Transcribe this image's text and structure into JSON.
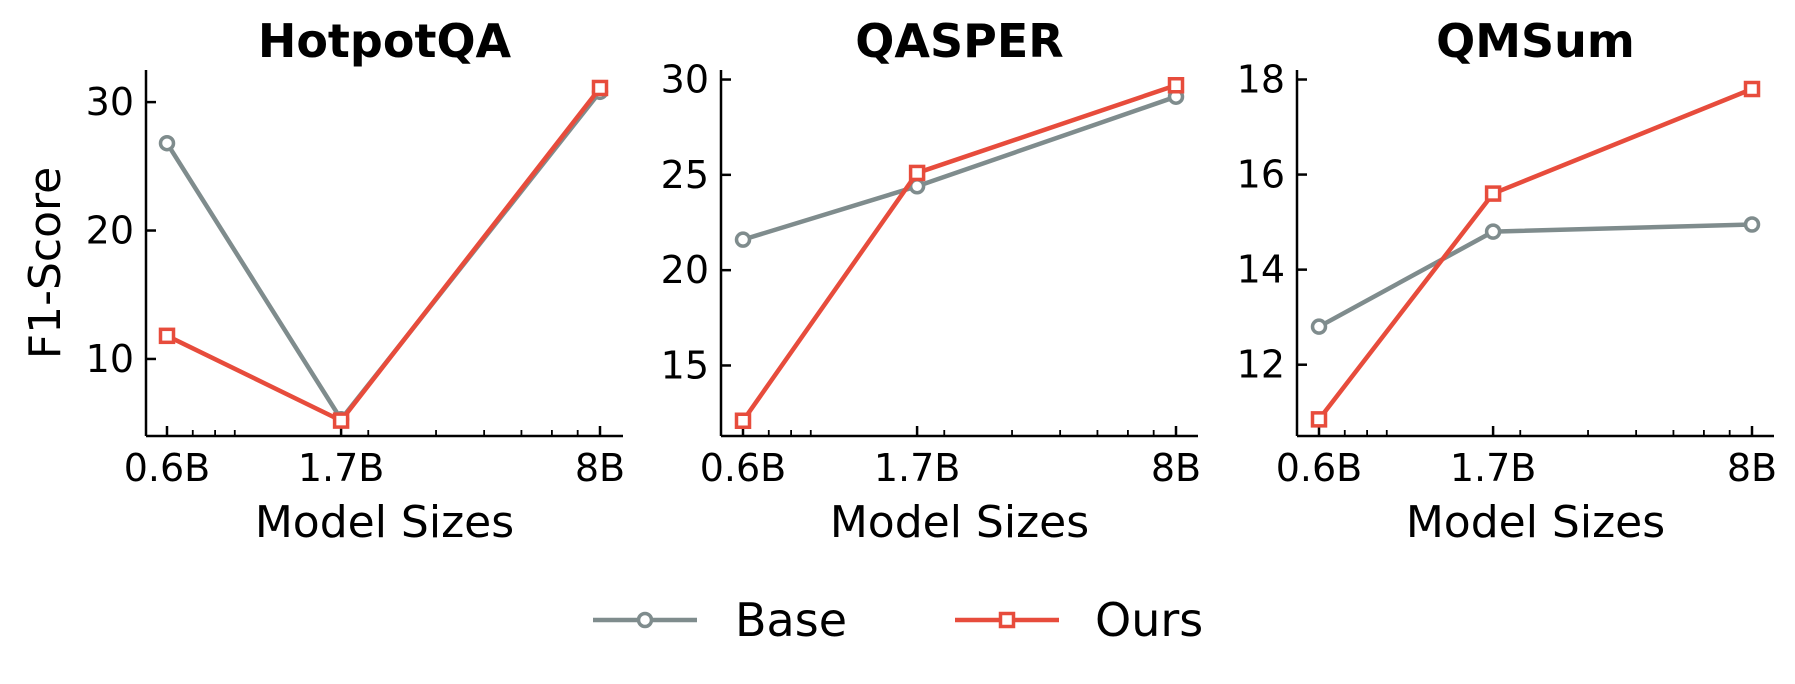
{
  "chart_data": [
    {
      "type": "line",
      "title": "HotpotQA",
      "xlabel": "Model Sizes",
      "ylabel": "F1-Score",
      "x_scale": "log",
      "x": [
        0.6,
        1.7,
        8
      ],
      "xticklabels": [
        "0.6B",
        "1.7B",
        "8B"
      ],
      "ylim": [
        4,
        32.5
      ],
      "yticks": [
        10,
        20,
        30
      ],
      "series": [
        {
          "name": "Base",
          "values": [
            26.8,
            5.3,
            30.8
          ]
        },
        {
          "name": "Ours",
          "values": [
            11.8,
            5.2,
            31.1
          ]
        }
      ]
    },
    {
      "type": "line",
      "title": "QASPER",
      "xlabel": "Model Sizes",
      "ylabel": "",
      "x_scale": "log",
      "x": [
        0.6,
        1.7,
        8
      ],
      "xticklabels": [
        "0.6B",
        "1.7B",
        "8B"
      ],
      "ylim": [
        11.3,
        30.5
      ],
      "yticks": [
        15,
        20,
        25,
        30
      ],
      "series": [
        {
          "name": "Base",
          "values": [
            21.6,
            24.4,
            29.1
          ]
        },
        {
          "name": "Ours",
          "values": [
            12.1,
            25.1,
            29.7
          ]
        }
      ]
    },
    {
      "type": "line",
      "title": "QMSum",
      "xlabel": "Model Sizes",
      "ylabel": "",
      "x_scale": "log",
      "x": [
        0.6,
        1.7,
        8
      ],
      "xticklabels": [
        "0.6B",
        "1.7B",
        "8B"
      ],
      "ylim": [
        10.5,
        18.2
      ],
      "yticks": [
        12,
        14,
        16,
        18
      ],
      "series": [
        {
          "name": "Base",
          "values": [
            12.8,
            14.8,
            14.95
          ]
        },
        {
          "name": "Ours",
          "values": [
            10.85,
            15.6,
            17.8
          ]
        }
      ]
    }
  ],
  "legend": {
    "placement": "bottom-center",
    "items": [
      {
        "name": "Base",
        "marker": "circle",
        "color": "#7f8c8d"
      },
      {
        "name": "Ours",
        "marker": "square",
        "color": "#e74c3c"
      }
    ]
  },
  "colors": {
    "Base": "#7f8c8d",
    "Ours": "#e74c3c"
  }
}
